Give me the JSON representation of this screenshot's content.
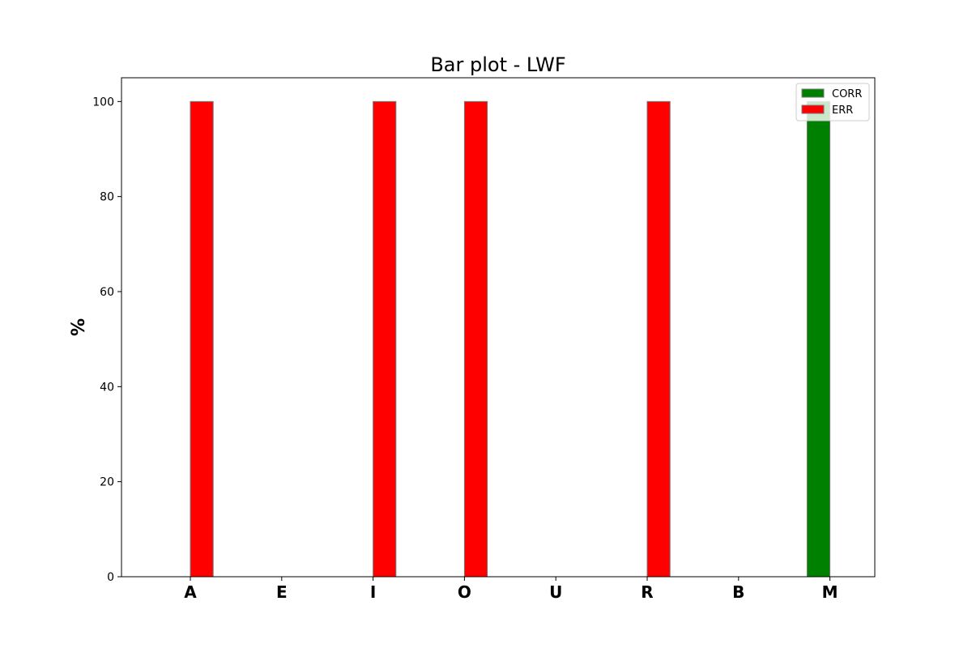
{
  "chart_data": {
    "type": "bar",
    "title": "Bar plot - LWF",
    "xlabel": "",
    "ylabel": "%",
    "categories": [
      "A",
      "E",
      "I",
      "O",
      "U",
      "R",
      "B",
      "M"
    ],
    "series": [
      {
        "name": "CORR",
        "color": "#008000",
        "values": [
          0,
          0,
          0,
          0,
          0,
          0,
          0,
          100
        ]
      },
      {
        "name": "ERR",
        "color": "#ff0000",
        "values": [
          100,
          0,
          100,
          100,
          0,
          100,
          0,
          0
        ]
      }
    ],
    "ylim": [
      0,
      105
    ],
    "yticks": [
      0,
      20,
      40,
      60,
      80,
      100
    ],
    "ytick_labels": [
      "0",
      "20",
      "40",
      "60",
      "80",
      "100"
    ],
    "grid": false,
    "legend_position": "top-right"
  }
}
